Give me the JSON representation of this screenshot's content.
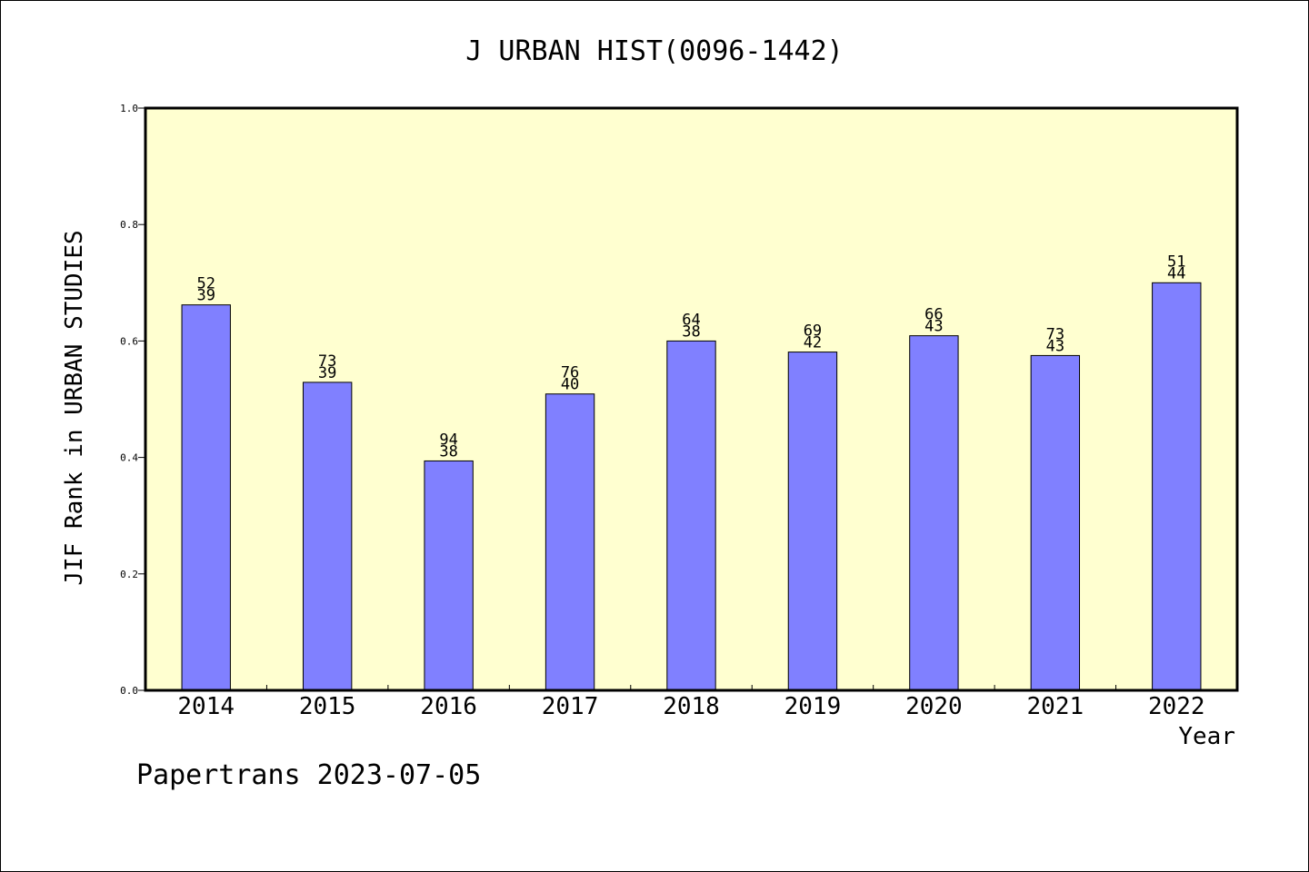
{
  "chart_data": {
    "type": "bar",
    "title": "J URBAN HIST(0096-1442)",
    "xlabel": "Year",
    "ylabel": "JIF Rank in URBAN STUDIES",
    "ylim": [
      0,
      1.0
    ],
    "yticks": [
      "0.0",
      "0.2",
      "0.4",
      "0.6",
      "0.8",
      "1.0"
    ],
    "categories": [
      "2014",
      "2015",
      "2016",
      "2017",
      "2018",
      "2019",
      "2020",
      "2021",
      "2022"
    ],
    "values": [
      0.662,
      0.529,
      0.394,
      0.509,
      0.6,
      0.581,
      0.609,
      0.575,
      0.7
    ],
    "labels_top": [
      "52",
      "73",
      "94",
      "76",
      "64",
      "69",
      "66",
      "73",
      "51"
    ],
    "labels_bottom": [
      "39",
      "39",
      "38",
      "40",
      "38",
      "42",
      "43",
      "43",
      "44"
    ],
    "grid": false,
    "colors": {
      "plot_background": "#ffffd0",
      "bar_fill": "#8080ff",
      "bar_edge": "#000000"
    }
  },
  "footer": "Papertrans 2023-07-05"
}
